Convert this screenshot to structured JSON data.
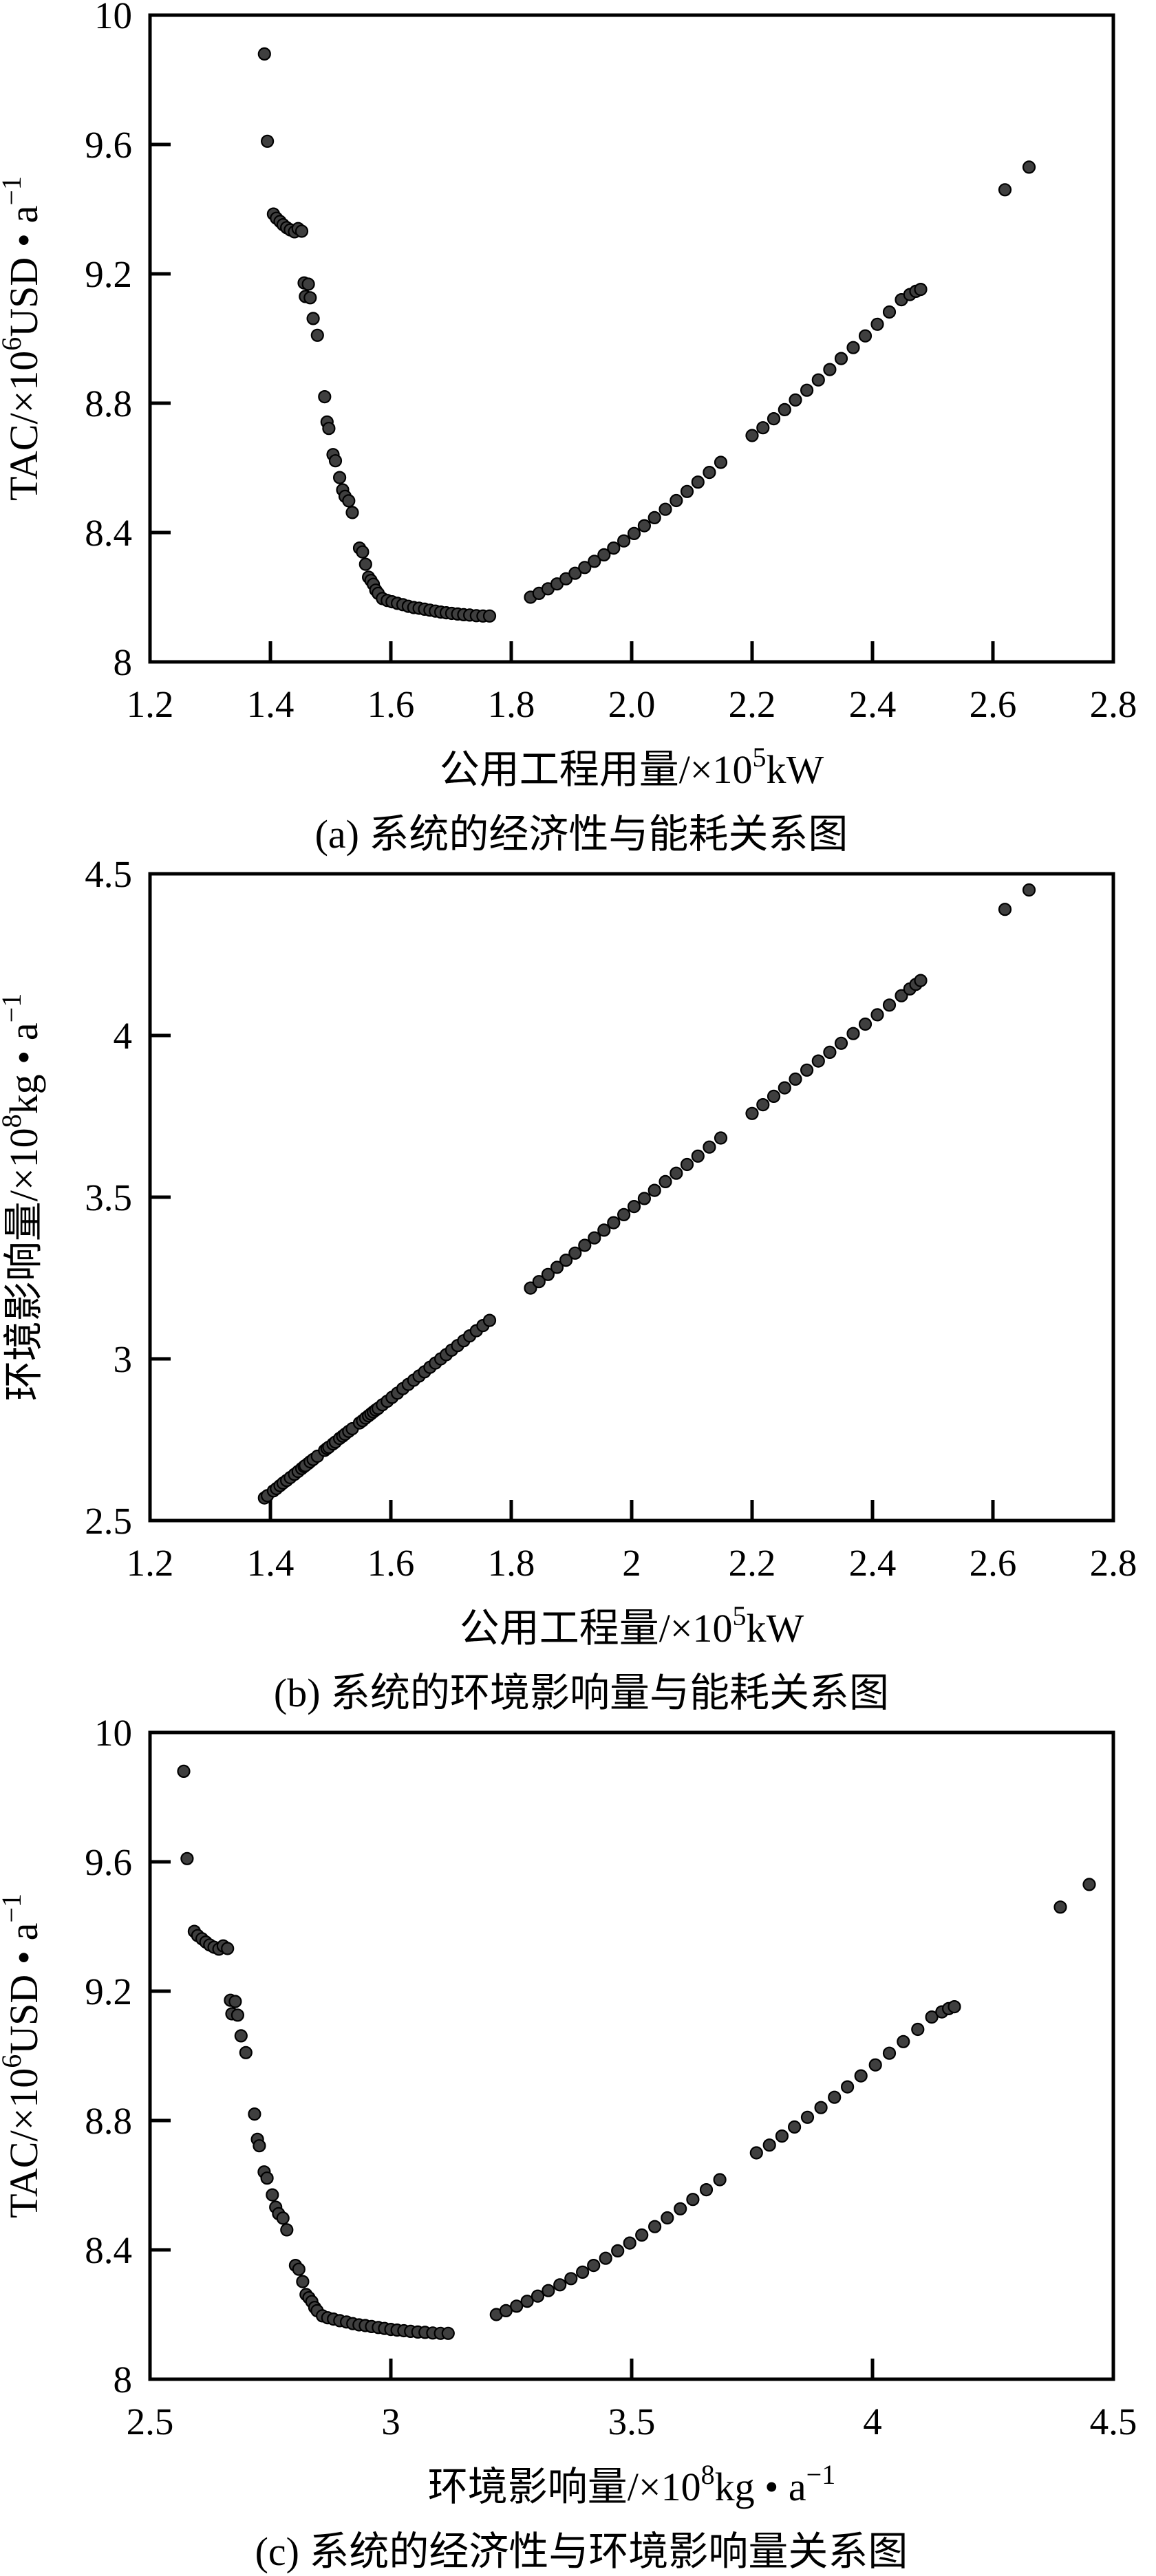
{
  "style": {
    "background": "#ffffff",
    "axis_color": "#000000",
    "marker_fill": "#3f3f3f",
    "marker_edge": "#000000",
    "marker_radius": 8.5
  },
  "chart_data": [
    {
      "type": "scatter",
      "caption": "(a) 系统的经济性与能耗关系图",
      "xlabel_text": "公用工程用量/×10⁵kW",
      "ylabel_text": "TAC/×10⁶USD•a⁻¹",
      "xlabel_segments": [
        {
          "t": "公用工程用量/×10"
        },
        {
          "t": "5",
          "sup": true
        },
        {
          "t": "kW"
        }
      ],
      "ylabel_segments": [
        {
          "t": "TAC/×10"
        },
        {
          "t": "6",
          "sup": true
        },
        {
          "t": "USD • a"
        },
        {
          "t": "−1",
          "sup": true
        }
      ],
      "xlim": [
        1.2,
        2.8
      ],
      "ylim": [
        8,
        10
      ],
      "xtick_values": [
        1.2,
        1.4,
        1.6,
        1.8,
        2.0,
        2.2,
        2.4,
        2.6,
        2.8
      ],
      "xtick_labels": [
        "1.2",
        "1.4",
        "1.6",
        "1.8",
        "2.0",
        "2.2",
        "2.4",
        "2.6",
        "2.8"
      ],
      "ytick_values": [
        8,
        8.4,
        8.8,
        9.2,
        9.6,
        10
      ],
      "ytick_labels": [
        "8",
        "8.4",
        "8.8",
        "9.2",
        "9.6",
        "10"
      ],
      "grid": false,
      "legend": "none",
      "points": [
        [
          1.39,
          9.88
        ],
        [
          1.395,
          9.61
        ],
        [
          1.405,
          9.385
        ],
        [
          1.41,
          9.372
        ],
        [
          1.416,
          9.362
        ],
        [
          1.421,
          9.352
        ],
        [
          1.427,
          9.343
        ],
        [
          1.433,
          9.336
        ],
        [
          1.44,
          9.33
        ],
        [
          1.446,
          9.34
        ],
        [
          1.452,
          9.332
        ],
        [
          1.456,
          9.172
        ],
        [
          1.463,
          9.168
        ],
        [
          1.458,
          9.13
        ],
        [
          1.466,
          9.126
        ],
        [
          1.471,
          9.062
        ],
        [
          1.478,
          9.01
        ],
        [
          1.49,
          8.82
        ],
        [
          1.494,
          8.742
        ],
        [
          1.497,
          8.722
        ],
        [
          1.504,
          8.641
        ],
        [
          1.508,
          8.622
        ],
        [
          1.515,
          8.57
        ],
        [
          1.52,
          8.532
        ],
        [
          1.524,
          8.512
        ],
        [
          1.53,
          8.498
        ],
        [
          1.536,
          8.462
        ],
        [
          1.548,
          8.352
        ],
        [
          1.553,
          8.34
        ],
        [
          1.558,
          8.302
        ],
        [
          1.563,
          8.262
        ],
        [
          1.567,
          8.252
        ],
        [
          1.571,
          8.24
        ],
        [
          1.575,
          8.222
        ],
        [
          1.579,
          8.212
        ],
        [
          1.586,
          8.196
        ],
        [
          1.594,
          8.19
        ],
        [
          1.602,
          8.186
        ],
        [
          1.611,
          8.181
        ],
        [
          1.62,
          8.177
        ],
        [
          1.629,
          8.172
        ],
        [
          1.638,
          8.168
        ],
        [
          1.647,
          8.166
        ],
        [
          1.656,
          8.163
        ],
        [
          1.665,
          8.16
        ],
        [
          1.674,
          8.157
        ],
        [
          1.683,
          8.154
        ],
        [
          1.692,
          8.152
        ],
        [
          1.701,
          8.15
        ],
        [
          1.711,
          8.148
        ],
        [
          1.721,
          8.146
        ],
        [
          1.731,
          8.145
        ],
        [
          1.742,
          8.143
        ],
        [
          1.753,
          8.142
        ],
        [
          1.764,
          8.142
        ],
        [
          1.832,
          8.2
        ],
        [
          1.846,
          8.212
        ],
        [
          1.861,
          8.226
        ],
        [
          1.876,
          8.241
        ],
        [
          1.891,
          8.257
        ],
        [
          1.906,
          8.274
        ],
        [
          1.922,
          8.292
        ],
        [
          1.938,
          8.311
        ],
        [
          1.954,
          8.331
        ],
        [
          1.97,
          8.352
        ],
        [
          1.987,
          8.374
        ],
        [
          2.004,
          8.397
        ],
        [
          2.021,
          8.421
        ],
        [
          2.038,
          8.446
        ],
        [
          2.056,
          8.472
        ],
        [
          2.074,
          8.499
        ],
        [
          2.092,
          8.527
        ],
        [
          2.11,
          8.556
        ],
        [
          2.129,
          8.586
        ],
        [
          2.148,
          8.617
        ],
        [
          2.2,
          8.7
        ],
        [
          2.218,
          8.724
        ],
        [
          2.236,
          8.752
        ],
        [
          2.254,
          8.78
        ],
        [
          2.272,
          8.81
        ],
        [
          2.291,
          8.84
        ],
        [
          2.31,
          8.872
        ],
        [
          2.329,
          8.904
        ],
        [
          2.348,
          8.938
        ],
        [
          2.368,
          8.972
        ],
        [
          2.388,
          9.008
        ],
        [
          2.408,
          9.044
        ],
        [
          2.428,
          9.082
        ],
        [
          2.448,
          9.12
        ],
        [
          2.462,
          9.136
        ],
        [
          2.472,
          9.146
        ],
        [
          2.48,
          9.152
        ],
        [
          2.62,
          9.46
        ],
        [
          2.66,
          9.53
        ]
      ]
    },
    {
      "type": "scatter",
      "caption": "(b) 系统的环境影响量与能耗关系图",
      "xlabel_text": "公用工程量/×10⁵kW",
      "ylabel_text": "环境影响量/×10⁸kg•a⁻¹",
      "xlabel_segments": [
        {
          "t": "公用工程量/×10"
        },
        {
          "t": "5",
          "sup": true
        },
        {
          "t": "kW"
        }
      ],
      "ylabel_segments": [
        {
          "t": "环境影响量/×10"
        },
        {
          "t": "8",
          "sup": true
        },
        {
          "t": "kg • a"
        },
        {
          "t": "−1",
          "sup": true
        }
      ],
      "xlim": [
        1.2,
        2.8
      ],
      "ylim": [
        2.5,
        4.5
      ],
      "xtick_values": [
        1.2,
        1.4,
        1.6,
        1.8,
        2.0,
        2.2,
        2.4,
        2.6,
        2.8
      ],
      "xtick_labels": [
        "1.2",
        "1.4",
        "1.6",
        "1.8",
        "2",
        "2.2",
        "2.4",
        "2.6",
        "2.8"
      ],
      "ytick_values": [
        2.5,
        3,
        3.5,
        4,
        4.5
      ],
      "ytick_labels": [
        "2.5",
        "3",
        "3.5",
        "4",
        "4.5"
      ],
      "grid": false,
      "legend": "none",
      "points": [
        [
          1.39,
          2.57
        ],
        [
          1.395,
          2.577
        ],
        [
          1.405,
          2.592
        ],
        [
          1.41,
          2.599
        ],
        [
          1.416,
          2.608
        ],
        [
          1.421,
          2.616
        ],
        [
          1.427,
          2.624
        ],
        [
          1.433,
          2.633
        ],
        [
          1.44,
          2.643
        ],
        [
          1.446,
          2.652
        ],
        [
          1.452,
          2.661
        ],
        [
          1.456,
          2.667
        ],
        [
          1.463,
          2.677
        ],
        [
          1.458,
          2.67
        ],
        [
          1.466,
          2.682
        ],
        [
          1.471,
          2.689
        ],
        [
          1.478,
          2.699
        ],
        [
          1.49,
          2.717
        ],
        [
          1.494,
          2.723
        ],
        [
          1.497,
          2.727
        ],
        [
          1.504,
          2.737
        ],
        [
          1.508,
          2.743
        ],
        [
          1.515,
          2.754
        ],
        [
          1.52,
          2.761
        ],
        [
          1.524,
          2.767
        ],
        [
          1.53,
          2.776
        ],
        [
          1.536,
          2.784
        ],
        [
          1.548,
          2.802
        ],
        [
          1.553,
          2.809
        ],
        [
          1.558,
          2.817
        ],
        [
          1.563,
          2.824
        ],
        [
          1.567,
          2.83
        ],
        [
          1.571,
          2.836
        ],
        [
          1.575,
          2.842
        ],
        [
          1.579,
          2.847
        ],
        [
          1.586,
          2.858
        ],
        [
          1.594,
          2.869
        ],
        [
          1.602,
          2.881
        ],
        [
          1.611,
          2.894
        ],
        [
          1.62,
          2.908
        ],
        [
          1.629,
          2.921
        ],
        [
          1.638,
          2.934
        ],
        [
          1.647,
          2.947
        ],
        [
          1.656,
          2.96
        ],
        [
          1.665,
          2.974
        ],
        [
          1.674,
          2.987
        ],
        [
          1.683,
          3.0
        ],
        [
          1.692,
          3.013
        ],
        [
          1.701,
          3.027
        ],
        [
          1.711,
          3.041
        ],
        [
          1.721,
          3.056
        ],
        [
          1.731,
          3.071
        ],
        [
          1.742,
          3.087
        ],
        [
          1.753,
          3.103
        ],
        [
          1.764,
          3.119
        ],
        [
          1.832,
          3.219
        ],
        [
          1.846,
          3.239
        ],
        [
          1.861,
          3.261
        ],
        [
          1.876,
          3.283
        ],
        [
          1.891,
          3.305
        ],
        [
          1.906,
          3.327
        ],
        [
          1.922,
          3.351
        ],
        [
          1.938,
          3.374
        ],
        [
          1.954,
          3.398
        ],
        [
          1.97,
          3.421
        ],
        [
          1.987,
          3.446
        ],
        [
          2.004,
          3.471
        ],
        [
          2.021,
          3.496
        ],
        [
          2.038,
          3.521
        ],
        [
          2.056,
          3.548
        ],
        [
          2.074,
          3.574
        ],
        [
          2.092,
          3.601
        ],
        [
          2.11,
          3.627
        ],
        [
          2.129,
          3.655
        ],
        [
          2.148,
          3.683
        ],
        [
          2.2,
          3.759
        ],
        [
          2.218,
          3.786
        ],
        [
          2.236,
          3.812
        ],
        [
          2.254,
          3.838
        ],
        [
          2.272,
          3.865
        ],
        [
          2.291,
          3.893
        ],
        [
          2.31,
          3.921
        ],
        [
          2.329,
          3.948
        ],
        [
          2.348,
          3.976
        ],
        [
          2.368,
          4.006
        ],
        [
          2.388,
          4.035
        ],
        [
          2.408,
          4.064
        ],
        [
          2.428,
          4.094
        ],
        [
          2.448,
          4.123
        ],
        [
          2.462,
          4.144
        ],
        [
          2.472,
          4.158
        ],
        [
          2.48,
          4.17
        ],
        [
          2.62,
          4.39
        ],
        [
          2.66,
          4.45
        ]
      ]
    },
    {
      "type": "scatter",
      "caption": "(c) 系统的经济性与环境影响量关系图",
      "xlabel_text": "环境影响量/×10⁸kg•a⁻¹",
      "ylabel_text": "TAC/×10⁶USD•a⁻¹",
      "xlabel_segments": [
        {
          "t": "环境影响量/×10"
        },
        {
          "t": "8",
          "sup": true
        },
        {
          "t": "kg • a"
        },
        {
          "t": "−1",
          "sup": true
        }
      ],
      "ylabel_segments": [
        {
          "t": "TAC/×10"
        },
        {
          "t": "6",
          "sup": true
        },
        {
          "t": "USD • a"
        },
        {
          "t": "−1",
          "sup": true
        }
      ],
      "xlim": [
        2.5,
        4.5
      ],
      "ylim": [
        8,
        10
      ],
      "xtick_values": [
        2.5,
        3,
        3.5,
        4,
        4.5
      ],
      "xtick_labels": [
        "2.5",
        "3",
        "3.5",
        "4",
        "4.5"
      ],
      "ytick_values": [
        8,
        8.4,
        8.8,
        9.2,
        9.6,
        10
      ],
      "ytick_labels": [
        "8",
        "8.4",
        "8.8",
        "9.2",
        "9.6",
        "10"
      ],
      "grid": false,
      "legend": "none",
      "points": [
        [
          2.57,
          9.88
        ],
        [
          2.577,
          9.61
        ],
        [
          2.592,
          9.385
        ],
        [
          2.599,
          9.372
        ],
        [
          2.608,
          9.362
        ],
        [
          2.616,
          9.352
        ],
        [
          2.624,
          9.343
        ],
        [
          2.633,
          9.336
        ],
        [
          2.643,
          9.33
        ],
        [
          2.652,
          9.34
        ],
        [
          2.661,
          9.332
        ],
        [
          2.667,
          9.172
        ],
        [
          2.677,
          9.168
        ],
        [
          2.67,
          9.13
        ],
        [
          2.682,
          9.126
        ],
        [
          2.689,
          9.062
        ],
        [
          2.699,
          9.01
        ],
        [
          2.717,
          8.82
        ],
        [
          2.723,
          8.742
        ],
        [
          2.727,
          8.722
        ],
        [
          2.737,
          8.641
        ],
        [
          2.743,
          8.622
        ],
        [
          2.754,
          8.57
        ],
        [
          2.761,
          8.532
        ],
        [
          2.767,
          8.512
        ],
        [
          2.776,
          8.498
        ],
        [
          2.784,
          8.462
        ],
        [
          2.802,
          8.352
        ],
        [
          2.809,
          8.34
        ],
        [
          2.817,
          8.302
        ],
        [
          2.824,
          8.262
        ],
        [
          2.83,
          8.252
        ],
        [
          2.836,
          8.24
        ],
        [
          2.842,
          8.222
        ],
        [
          2.847,
          8.212
        ],
        [
          2.858,
          8.196
        ],
        [
          2.869,
          8.19
        ],
        [
          2.881,
          8.186
        ],
        [
          2.894,
          8.181
        ],
        [
          2.908,
          8.177
        ],
        [
          2.921,
          8.172
        ],
        [
          2.934,
          8.168
        ],
        [
          2.947,
          8.166
        ],
        [
          2.96,
          8.163
        ],
        [
          2.974,
          8.16
        ],
        [
          2.987,
          8.157
        ],
        [
          3.0,
          8.154
        ],
        [
          3.013,
          8.152
        ],
        [
          3.027,
          8.15
        ],
        [
          3.041,
          8.148
        ],
        [
          3.056,
          8.146
        ],
        [
          3.071,
          8.145
        ],
        [
          3.087,
          8.143
        ],
        [
          3.103,
          8.142
        ],
        [
          3.119,
          8.142
        ],
        [
          3.219,
          8.2
        ],
        [
          3.239,
          8.212
        ],
        [
          3.261,
          8.226
        ],
        [
          3.283,
          8.241
        ],
        [
          3.305,
          8.257
        ],
        [
          3.327,
          8.274
        ],
        [
          3.351,
          8.292
        ],
        [
          3.374,
          8.311
        ],
        [
          3.398,
          8.331
        ],
        [
          3.421,
          8.352
        ],
        [
          3.446,
          8.374
        ],
        [
          3.471,
          8.397
        ],
        [
          3.496,
          8.421
        ],
        [
          3.521,
          8.446
        ],
        [
          3.548,
          8.472
        ],
        [
          3.574,
          8.499
        ],
        [
          3.601,
          8.527
        ],
        [
          3.627,
          8.556
        ],
        [
          3.655,
          8.586
        ],
        [
          3.683,
          8.617
        ],
        [
          3.759,
          8.7
        ],
        [
          3.786,
          8.724
        ],
        [
          3.812,
          8.752
        ],
        [
          3.838,
          8.78
        ],
        [
          3.865,
          8.81
        ],
        [
          3.893,
          8.84
        ],
        [
          3.921,
          8.872
        ],
        [
          3.948,
          8.904
        ],
        [
          3.976,
          8.938
        ],
        [
          4.006,
          8.972
        ],
        [
          4.035,
          9.008
        ],
        [
          4.064,
          9.044
        ],
        [
          4.094,
          9.082
        ],
        [
          4.123,
          9.12
        ],
        [
          4.144,
          9.136
        ],
        [
          4.158,
          9.146
        ],
        [
          4.17,
          9.152
        ],
        [
          4.39,
          9.46
        ],
        [
          4.45,
          9.53
        ]
      ]
    }
  ]
}
